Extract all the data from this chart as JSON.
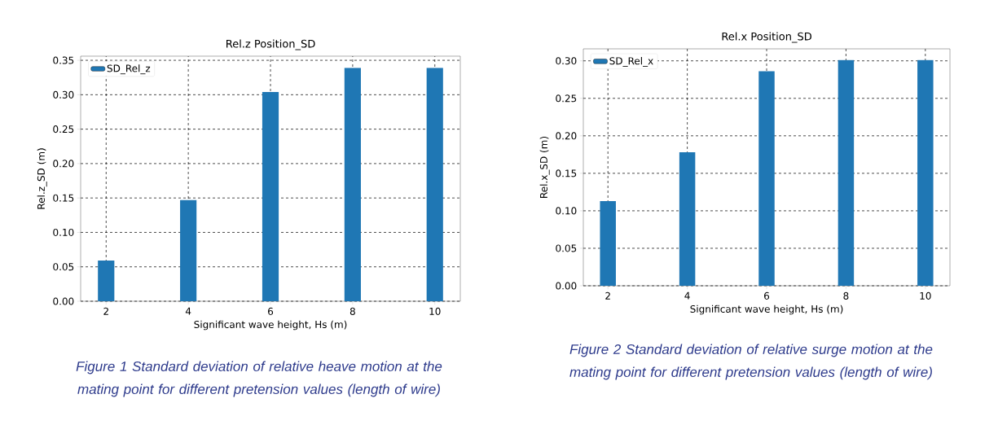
{
  "chart_data": [
    {
      "type": "bar",
      "title": "Rel.z Position_SD",
      "xlabel": "Significant wave height, Hs (m)",
      "ylabel": "Rel.z_SD (m)",
      "x": [
        2,
        4,
        6,
        8,
        10
      ],
      "series": [
        {
          "name": "SD_Rel_z",
          "color": "#1f77b4",
          "values": [
            0.059,
            0.147,
            0.304,
            0.339,
            0.339
          ]
        }
      ],
      "xlim": [
        1.38,
        10.62
      ],
      "ylim": [
        0,
        0.356
      ],
      "xticks": [
        2,
        4,
        6,
        8,
        10
      ],
      "yticks": [
        {
          "value": 0,
          "label": "0.00"
        },
        {
          "value": 0.05,
          "label": "0.05"
        },
        {
          "value": 0.1,
          "label": "0.10"
        },
        {
          "value": 0.15,
          "label": "0.15"
        },
        {
          "value": 0.2,
          "label": "0.20"
        },
        {
          "value": 0.25,
          "label": "0.25"
        },
        {
          "value": 0.3,
          "label": "0.30"
        },
        {
          "value": 0.35,
          "label": "0.35"
        }
      ],
      "grid": true,
      "legend": "top left",
      "annotations": [
        "Figure  1 Standard deviation of relative heave motion at the mating point for different pretension values (length of wire)"
      ]
    },
    {
      "type": "bar",
      "title": "Rel.x Position_SD",
      "xlabel": "Significant wave height, Hs (m)",
      "ylabel": "Rel.x_SD (m)",
      "x": [
        2,
        4,
        6,
        8,
        10
      ],
      "series": [
        {
          "name": "SD_Rel_x",
          "color": "#1f77b4",
          "values": [
            0.113,
            0.178,
            0.286,
            0.301,
            0.301
          ]
        }
      ],
      "xlim": [
        1.38,
        10.62
      ],
      "ylim": [
        0,
        0.316
      ],
      "xticks": [
        2,
        4,
        6,
        8,
        10
      ],
      "yticks": [
        {
          "value": 0,
          "label": "0.00"
        },
        {
          "value": 0.05,
          "label": "0.05"
        },
        {
          "value": 0.1,
          "label": "0.10"
        },
        {
          "value": 0.15,
          "label": "0.15"
        },
        {
          "value": 0.2,
          "label": "0.20"
        },
        {
          "value": 0.25,
          "label": "0.25"
        },
        {
          "value": 0.3,
          "label": "0.30"
        }
      ],
      "grid": true,
      "legend": "top left",
      "annotations": [
        "Figure  2 Standard deviation of relative surge motion at the mating point for different pretension values (length of wire)"
      ]
    }
  ]
}
